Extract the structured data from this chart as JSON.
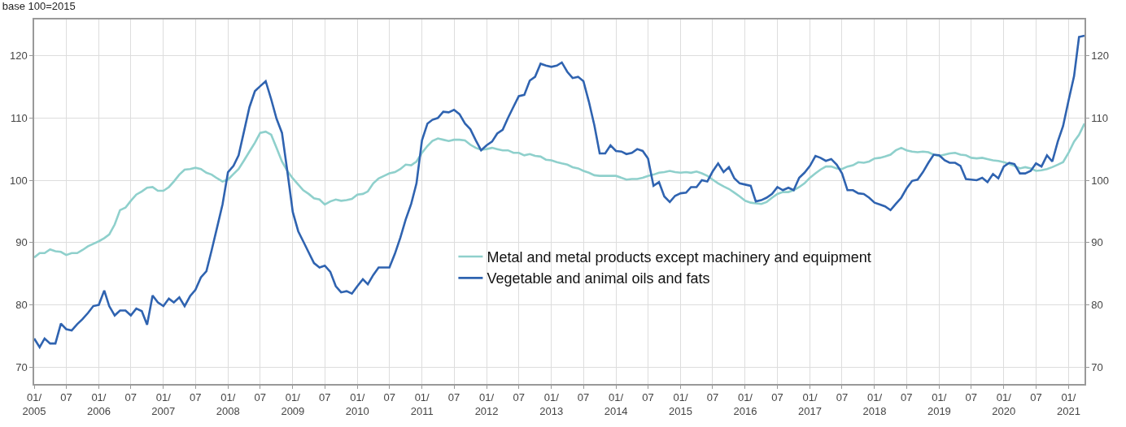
{
  "chart_data": {
    "type": "line",
    "title": "base 100=2015",
    "legend": "bottom",
    "grid": true,
    "line_style": "solid",
    "marker": "none",
    "xlim": [
      "2005-01",
      "2021-04"
    ],
    "ylim": [
      67.3,
      125.8
    ],
    "yticks": [
      70,
      80,
      90,
      100,
      110,
      120
    ],
    "y2lim": [
      67.3,
      125.8
    ],
    "y2ticks": [
      70,
      80,
      90,
      100,
      110,
      120
    ],
    "xticks": [
      {
        "value": "2005-01",
        "label": "01/\n2005"
      },
      {
        "value": "2005-07",
        "label": "07"
      },
      {
        "value": "2006-01",
        "label": "01/\n2006"
      },
      {
        "value": "2006-07",
        "label": "07"
      },
      {
        "value": "2007-01",
        "label": "01/\n2007"
      },
      {
        "value": "2007-07",
        "label": "07"
      },
      {
        "value": "2008-01",
        "label": "01/\n2008"
      },
      {
        "value": "2008-07",
        "label": "07"
      },
      {
        "value": "2009-01",
        "label": "01/\n2009"
      },
      {
        "value": "2009-07",
        "label": "07"
      },
      {
        "value": "2010-01",
        "label": "01/\n2010"
      },
      {
        "value": "2010-07",
        "label": "07"
      },
      {
        "value": "2011-01",
        "label": "01/\n2011"
      },
      {
        "value": "2011-07",
        "label": "07"
      },
      {
        "value": "2012-01",
        "label": "01/\n2012"
      },
      {
        "value": "2012-07",
        "label": "07"
      },
      {
        "value": "2013-01",
        "label": "01/\n2013"
      },
      {
        "value": "2013-07",
        "label": "07"
      },
      {
        "value": "2014-01",
        "label": "01/\n2014"
      },
      {
        "value": "2014-07",
        "label": "07"
      },
      {
        "value": "2015-01",
        "label": "01/\n2015"
      },
      {
        "value": "2015-07",
        "label": "07"
      },
      {
        "value": "2016-01",
        "label": "01/\n2016"
      },
      {
        "value": "2016-07",
        "label": "07"
      },
      {
        "value": "2017-01",
        "label": "01/\n2017"
      },
      {
        "value": "2017-07",
        "label": "07"
      },
      {
        "value": "2018-01",
        "label": "01/\n2018"
      },
      {
        "value": "2018-07",
        "label": "07"
      },
      {
        "value": "2019-01",
        "label": "01/\n2019"
      },
      {
        "value": "2019-07",
        "label": "07"
      },
      {
        "value": "2020-01",
        "label": "01/\n2020"
      },
      {
        "value": "2020-07",
        "label": "07"
      },
      {
        "value": "2021-01",
        "label": "01/\n2021"
      }
    ],
    "x": [
      "2005-01",
      "2005-02",
      "2005-03",
      "2005-04",
      "2005-05",
      "2005-06",
      "2005-07",
      "2005-08",
      "2005-09",
      "2005-10",
      "2005-11",
      "2005-12",
      "2006-01",
      "2006-02",
      "2006-03",
      "2006-04",
      "2006-05",
      "2006-06",
      "2006-07",
      "2006-08",
      "2006-09",
      "2006-10",
      "2006-11",
      "2006-12",
      "2007-01",
      "2007-02",
      "2007-03",
      "2007-04",
      "2007-05",
      "2007-06",
      "2007-07",
      "2007-08",
      "2007-09",
      "2007-10",
      "2007-11",
      "2007-12",
      "2008-01",
      "2008-02",
      "2008-03",
      "2008-04",
      "2008-05",
      "2008-06",
      "2008-07",
      "2008-08",
      "2008-09",
      "2008-10",
      "2008-11",
      "2008-12",
      "2009-01",
      "2009-02",
      "2009-03",
      "2009-04",
      "2009-05",
      "2009-06",
      "2009-07",
      "2009-08",
      "2009-09",
      "2009-10",
      "2009-11",
      "2009-12",
      "2010-01",
      "2010-02",
      "2010-03",
      "2010-04",
      "2010-05",
      "2010-06",
      "2010-07",
      "2010-08",
      "2010-09",
      "2010-10",
      "2010-11",
      "2010-12",
      "2011-01",
      "2011-02",
      "2011-03",
      "2011-04",
      "2011-05",
      "2011-06",
      "2011-07",
      "2011-08",
      "2011-09",
      "2011-10",
      "2011-11",
      "2011-12",
      "2012-01",
      "2012-02",
      "2012-03",
      "2012-04",
      "2012-05",
      "2012-06",
      "2012-07",
      "2012-08",
      "2012-09",
      "2012-10",
      "2012-11",
      "2012-12",
      "2013-01",
      "2013-02",
      "2013-03",
      "2013-04",
      "2013-05",
      "2013-06",
      "2013-07",
      "2013-08",
      "2013-09",
      "2013-10",
      "2013-11",
      "2013-12",
      "2014-01",
      "2014-02",
      "2014-03",
      "2014-04",
      "2014-05",
      "2014-06",
      "2014-07",
      "2014-08",
      "2014-09",
      "2014-10",
      "2014-11",
      "2014-12",
      "2015-01",
      "2015-02",
      "2015-03",
      "2015-04",
      "2015-05",
      "2015-06",
      "2015-07",
      "2015-08",
      "2015-09",
      "2015-10",
      "2015-11",
      "2015-12",
      "2016-01",
      "2016-02",
      "2016-03",
      "2016-04",
      "2016-05",
      "2016-06",
      "2016-07",
      "2016-08",
      "2016-09",
      "2016-10",
      "2016-11",
      "2016-12",
      "2017-01",
      "2017-02",
      "2017-03",
      "2017-04",
      "2017-05",
      "2017-06",
      "2017-07",
      "2017-08",
      "2017-09",
      "2017-10",
      "2017-11",
      "2017-12",
      "2018-01",
      "2018-02",
      "2018-03",
      "2018-04",
      "2018-05",
      "2018-06",
      "2018-07",
      "2018-08",
      "2018-09",
      "2018-10",
      "2018-11",
      "2018-12",
      "2019-01",
      "2019-02",
      "2019-03",
      "2019-04",
      "2019-05",
      "2019-06",
      "2019-07",
      "2019-08",
      "2019-09",
      "2019-10",
      "2019-11",
      "2019-12",
      "2020-01",
      "2020-02",
      "2020-03",
      "2020-04",
      "2020-05",
      "2020-06",
      "2020-07",
      "2020-08",
      "2020-09",
      "2020-10",
      "2020-11",
      "2020-12",
      "2021-01",
      "2021-02",
      "2021-03",
      "2021-04"
    ],
    "series": [
      {
        "name": "Metal and metal products except machinery and equipment",
        "color": "#8fd0cc",
        "values": [
          87.6,
          88.3,
          88.3,
          88.9,
          88.6,
          88.5,
          88.0,
          88.3,
          88.3,
          88.8,
          89.4,
          89.8,
          90.2,
          90.7,
          91.3,
          92.9,
          95.2,
          95.6,
          96.7,
          97.7,
          98.2,
          98.8,
          98.9,
          98.3,
          98.3,
          98.9,
          99.8,
          100.9,
          101.7,
          101.8,
          102.0,
          101.8,
          101.2,
          100.9,
          100.3,
          99.8,
          100.1,
          101.0,
          101.8,
          103.2,
          104.6,
          106.0,
          107.6,
          107.8,
          107.3,
          105.2,
          103.0,
          101.5,
          100.3,
          99.3,
          98.4,
          97.8,
          97.1,
          96.9,
          96.1,
          96.6,
          96.9,
          96.7,
          96.8,
          97.0,
          97.7,
          97.8,
          98.2,
          99.5,
          100.3,
          100.7,
          101.1,
          101.3,
          101.8,
          102.5,
          102.4,
          103.0,
          104.4,
          105.5,
          106.3,
          106.7,
          106.5,
          106.3,
          106.5,
          106.5,
          106.4,
          105.7,
          105.2,
          104.9,
          105.0,
          105.2,
          105.0,
          104.8,
          104.8,
          104.4,
          104.4,
          104.0,
          104.2,
          103.9,
          103.8,
          103.3,
          103.2,
          102.9,
          102.7,
          102.5,
          102.1,
          101.9,
          101.5,
          101.2,
          100.8,
          100.7,
          100.7,
          100.7,
          100.7,
          100.4,
          100.1,
          100.2,
          100.2,
          100.4,
          100.7,
          100.9,
          101.2,
          101.3,
          101.5,
          101.3,
          101.2,
          101.3,
          101.2,
          101.4,
          101.1,
          100.7,
          100.1,
          99.5,
          99.0,
          98.6,
          98.0,
          97.4,
          96.7,
          96.4,
          96.3,
          96.2,
          96.5,
          97.2,
          97.8,
          98.1,
          98.1,
          98.4,
          98.9,
          99.5,
          100.4,
          101.1,
          101.7,
          102.2,
          102.2,
          101.9,
          101.8,
          102.2,
          102.4,
          102.9,
          102.8,
          103.0,
          103.5,
          103.6,
          103.8,
          104.1,
          104.8,
          105.2,
          104.8,
          104.6,
          104.5,
          104.6,
          104.5,
          104.1,
          103.9,
          104.1,
          104.3,
          104.4,
          104.1,
          104.0,
          103.6,
          103.5,
          103.6,
          103.4,
          103.2,
          103.1,
          102.9,
          102.6,
          102.3,
          101.9,
          102.1,
          101.9,
          101.5,
          101.6,
          101.8,
          102.1,
          102.5,
          102.9,
          104.4,
          106.2,
          107.3,
          109.1
        ]
      },
      {
        "name": "Vegetable and animal oils and fats",
        "color": "#2f63b0",
        "values": [
          74.6,
          73.2,
          74.6,
          73.8,
          73.8,
          77.0,
          76.1,
          75.9,
          76.9,
          77.7,
          78.7,
          79.8,
          80.0,
          82.3,
          79.8,
          78.3,
          79.1,
          79.1,
          78.3,
          79.4,
          79.0,
          76.8,
          81.5,
          80.4,
          79.8,
          81.0,
          80.4,
          81.2,
          79.8,
          81.4,
          82.4,
          84.4,
          85.4,
          88.8,
          92.5,
          96.1,
          101.3,
          102.3,
          104.0,
          107.9,
          111.7,
          114.3,
          115.1,
          115.9,
          113.0,
          109.9,
          107.6,
          101.5,
          94.9,
          91.8,
          90.2,
          88.4,
          86.7,
          86.0,
          86.3,
          85.3,
          83.0,
          82.0,
          82.2,
          81.8,
          83.0,
          84.1,
          83.3,
          84.8,
          86.0,
          86.0,
          86.0,
          88.2,
          90.8,
          93.7,
          96.2,
          99.5,
          106.4,
          109.1,
          109.7,
          110.0,
          111.0,
          110.9,
          111.3,
          110.6,
          109.1,
          108.2,
          106.4,
          104.8,
          105.6,
          106.2,
          107.5,
          108.1,
          110.0,
          111.8,
          113.5,
          113.7,
          116.0,
          116.6,
          118.7,
          118.4,
          118.2,
          118.4,
          118.9,
          117.4,
          116.4,
          116.6,
          115.9,
          112.6,
          108.8,
          104.3,
          104.3,
          105.6,
          104.7,
          104.6,
          104.2,
          104.4,
          105.0,
          104.7,
          103.5,
          99.1,
          99.7,
          97.4,
          96.5,
          97.5,
          97.9,
          98.0,
          98.9,
          98.9,
          100.0,
          99.8,
          101.4,
          102.7,
          101.3,
          102.1,
          100.3,
          99.5,
          99.3,
          99.1,
          96.6,
          96.8,
          97.2,
          97.8,
          98.9,
          98.4,
          98.8,
          98.4,
          100.4,
          101.2,
          102.3,
          103.9,
          103.6,
          103.1,
          103.4,
          102.5,
          101.1,
          98.4,
          98.4,
          97.9,
          97.8,
          97.2,
          96.4,
          96.1,
          95.8,
          95.2,
          96.2,
          97.2,
          98.7,
          99.9,
          100.1,
          101.3,
          102.8,
          104.1,
          104.0,
          103.2,
          102.8,
          102.8,
          102.3,
          100.2,
          100.1,
          100.0,
          100.4,
          99.7,
          101.0,
          100.3,
          102.2,
          102.8,
          102.6,
          101.1,
          101.1,
          101.5,
          102.7,
          102.2,
          104.0,
          103.0,
          106.2,
          108.7,
          112.8,
          116.7,
          123.0,
          123.2
        ]
      }
    ]
  }
}
